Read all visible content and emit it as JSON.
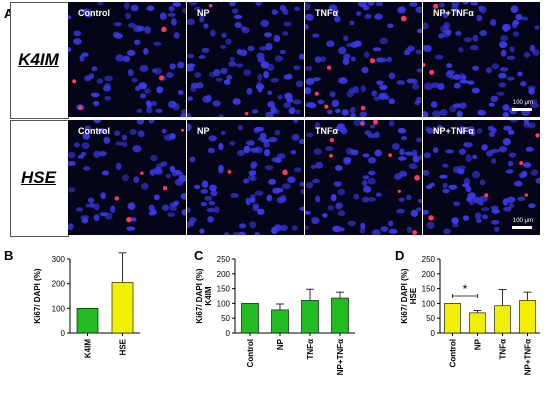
{
  "panel_A": {
    "letter": "A",
    "rows": [
      {
        "label": "K4IM",
        "tiles": [
          "Control",
          "NP",
          "TNFα",
          "NP+TNFα"
        ]
      },
      {
        "label": "HSE",
        "tiles": [
          "Control",
          "NP",
          "TNFα",
          "NP+TNFα"
        ]
      }
    ],
    "scale_text": "100 μm",
    "colors": {
      "nuclei": "#3a3ae8",
      "ki67": "#ff3a5a",
      "background": "#05051a"
    }
  },
  "chart_data": [
    {
      "panel": "B",
      "type": "bar",
      "categories": [
        "K4IM",
        "HSE"
      ],
      "values": [
        100,
        205
      ],
      "errors": [
        0,
        120
      ],
      "colors": [
        "#22bb22",
        "#f2ee00"
      ],
      "ylabel": "Ki67/ DAPI (%)",
      "ylim": [
        0,
        300
      ],
      "yticks": [
        0,
        100,
        200,
        300
      ]
    },
    {
      "panel": "C",
      "type": "bar",
      "categories": [
        "Control",
        "NP",
        "TNFα",
        "NP+TNFα"
      ],
      "values": [
        100,
        78,
        110,
        118
      ],
      "errors": [
        0,
        20,
        38,
        20
      ],
      "colors": [
        "#22bb22",
        "#22bb22",
        "#22bb22",
        "#22bb22"
      ],
      "ylabel": "Ki67/ DAPI (%)",
      "ylabel2": "K4IM",
      "ylim": [
        0,
        250
      ],
      "yticks": [
        0,
        50,
        100,
        150,
        200,
        250
      ]
    },
    {
      "panel": "D",
      "type": "bar",
      "categories": [
        "Control",
        "NP",
        "TNFα",
        "NP+TNFα"
      ],
      "values": [
        100,
        68,
        92,
        110
      ],
      "errors": [
        0,
        8,
        55,
        28
      ],
      "colors": [
        "#f2ee00",
        "#f2ee00",
        "#f2ee00",
        "#f2ee00"
      ],
      "ylabel": "Ki67/ DAPI (%)",
      "ylabel2": "HSE",
      "ylim": [
        0,
        250
      ],
      "yticks": [
        0,
        50,
        100,
        150,
        200,
        250
      ],
      "significance": {
        "from": 0,
        "to": 1,
        "label": "*"
      }
    }
  ]
}
